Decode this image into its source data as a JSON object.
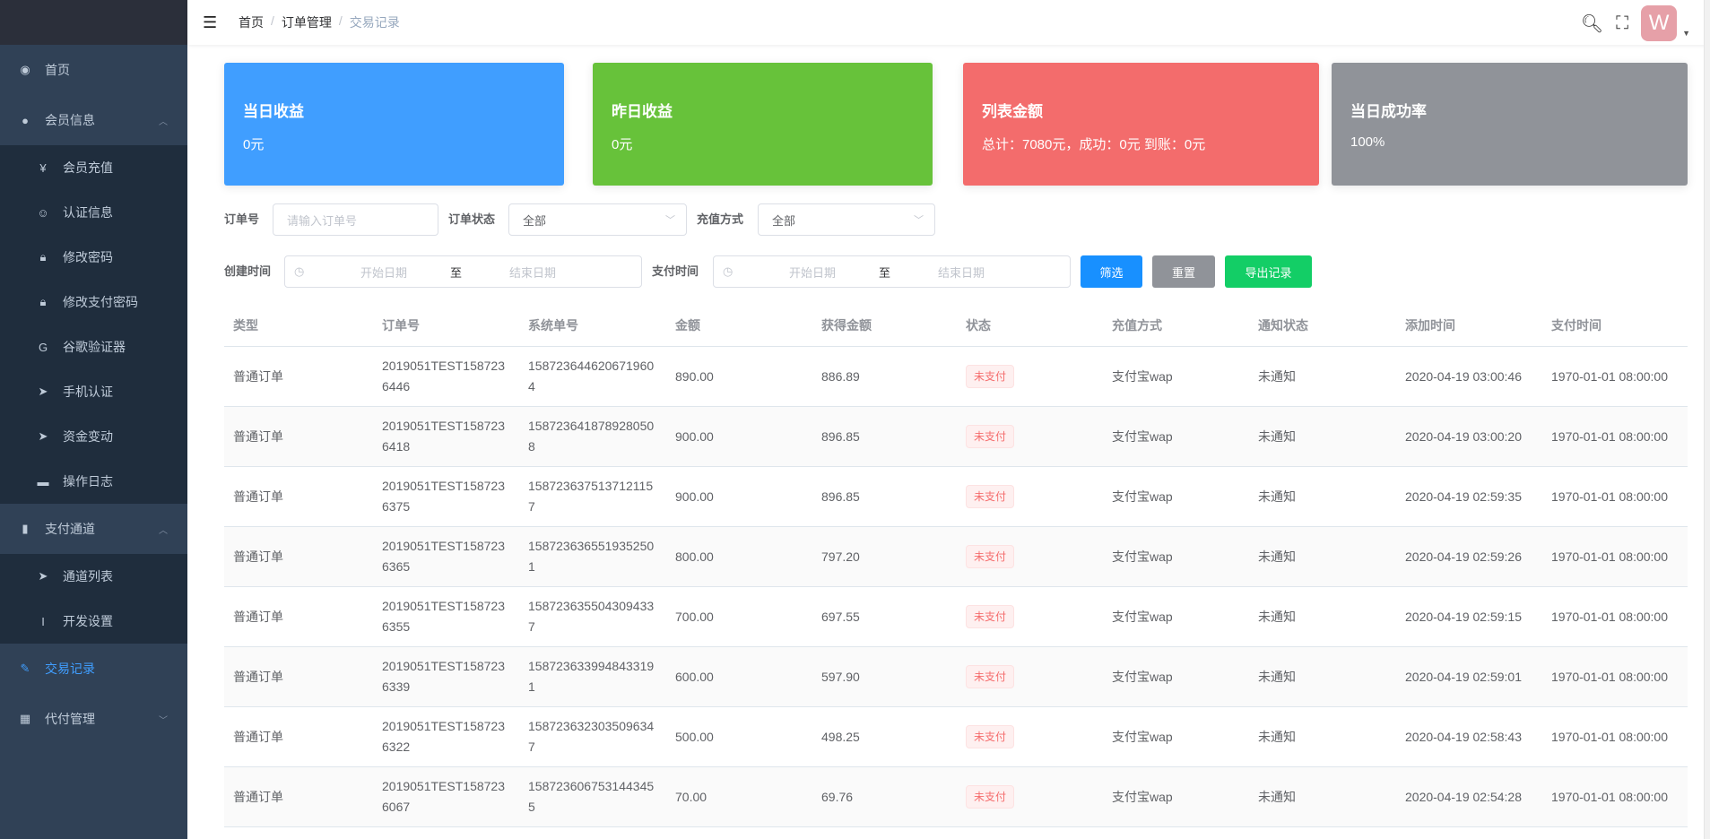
{
  "sidebar": {
    "items": [
      {
        "label": "首页",
        "icon": "dashboard-icon",
        "glyph": "◉",
        "type": "top"
      },
      {
        "label": "会员信息",
        "icon": "user-icon",
        "glyph": "●",
        "type": "top",
        "arrow": "︿"
      },
      {
        "label": "会员充值",
        "icon": "yen-icon",
        "glyph": "¥",
        "type": "sub"
      },
      {
        "label": "认证信息",
        "icon": "id-card-icon",
        "glyph": "☺",
        "type": "sub"
      },
      {
        "label": "修改密码",
        "icon": "lock-icon",
        "glyph": "🔒︎",
        "type": "sub"
      },
      {
        "label": "修改支付密码",
        "icon": "lock-icon",
        "glyph": "🔒︎",
        "type": "sub"
      },
      {
        "label": "谷歌验证器",
        "icon": "google-icon",
        "glyph": "G",
        "type": "sub"
      },
      {
        "label": "手机认证",
        "icon": "paper-plane-icon",
        "glyph": "➤",
        "type": "sub"
      },
      {
        "label": "资金变动",
        "icon": "paper-plane-icon",
        "glyph": "➤",
        "type": "sub"
      },
      {
        "label": "操作日志",
        "icon": "message-icon",
        "glyph": "▬",
        "type": "sub"
      },
      {
        "label": "支付通道",
        "icon": "channel-icon",
        "glyph": "▮",
        "type": "top",
        "arrow": "︿"
      },
      {
        "label": "通道列表",
        "icon": "paper-plane-icon",
        "glyph": "➤",
        "type": "sub"
      },
      {
        "label": "开发设置",
        "icon": "code-icon",
        "glyph": "I",
        "type": "sub"
      },
      {
        "label": "交易记录",
        "icon": "edit-icon",
        "glyph": "✎",
        "type": "top",
        "active": true
      },
      {
        "label": "代付管理",
        "icon": "grid-icon",
        "glyph": "▦",
        "type": "top",
        "arrow": "﹀"
      }
    ]
  },
  "header": {
    "breadcrumb": [
      "首页",
      "订单管理",
      "交易记录"
    ],
    "separator": "/",
    "avatar_letter": "W"
  },
  "cards": [
    {
      "title": "当日收益",
      "value": "0元",
      "color": "#409eff"
    },
    {
      "title": "昨日收益",
      "value": "0元",
      "color": "#67c23a"
    },
    {
      "title": "列表金额",
      "value": "总计：7080元，成功：0元 到账：0元",
      "color": "#f36c6c"
    },
    {
      "title": "当日成功率",
      "value": "100%",
      "color": "#909399"
    }
  ],
  "filters": {
    "order_no_label": "订单号",
    "order_no_placeholder": "请输入订单号",
    "order_status_label": "订单状态",
    "order_status_value": "全部",
    "pay_method_label": "充值方式",
    "pay_method_value": "全部",
    "create_time_label": "创建时间",
    "pay_time_label": "支付时间",
    "start_placeholder": "开始日期",
    "end_placeholder": "结束日期",
    "range_sep": "至",
    "filter_btn": "筛选",
    "reset_btn": "重置",
    "export_btn": "导出记录",
    "colors": {
      "filter": "#1890ff",
      "reset": "#909399",
      "export": "#13ce66"
    }
  },
  "table": {
    "columns": [
      "类型",
      "订单号",
      "系统单号",
      "金额",
      "获得金额",
      "状态",
      "充值方式",
      "通知状态",
      "添加时间",
      "支付时间"
    ],
    "rows": [
      [
        "普通订单",
        "2019051TEST1587236446",
        "1587236446206719604",
        "890.00",
        "886.89",
        "未支付",
        "支付宝wap",
        "未通知",
        "2020-04-19 03:00:46",
        "1970-01-01 08:00:00"
      ],
      [
        "普通订单",
        "2019051TEST1587236418",
        "1587236418789280508",
        "900.00",
        "896.85",
        "未支付",
        "支付宝wap",
        "未通知",
        "2020-04-19 03:00:20",
        "1970-01-01 08:00:00"
      ],
      [
        "普通订单",
        "2019051TEST1587236375",
        "1587236375137121157",
        "900.00",
        "896.85",
        "未支付",
        "支付宝wap",
        "未通知",
        "2020-04-19 02:59:35",
        "1970-01-01 08:00:00"
      ],
      [
        "普通订单",
        "2019051TEST1587236365",
        "1587236365519352501",
        "800.00",
        "797.20",
        "未支付",
        "支付宝wap",
        "未通知",
        "2020-04-19 02:59:26",
        "1970-01-01 08:00:00"
      ],
      [
        "普通订单",
        "2019051TEST1587236355",
        "1587236355043094337",
        "700.00",
        "697.55",
        "未支付",
        "支付宝wap",
        "未通知",
        "2020-04-19 02:59:15",
        "1970-01-01 08:00:00"
      ],
      [
        "普通订单",
        "2019051TEST1587236339",
        "1587236339948433191",
        "600.00",
        "597.90",
        "未支付",
        "支付宝wap",
        "未通知",
        "2020-04-19 02:59:01",
        "1970-01-01 08:00:00"
      ],
      [
        "普通订单",
        "2019051TEST1587236322",
        "1587236323035096347",
        "500.00",
        "498.25",
        "未支付",
        "支付宝wap",
        "未通知",
        "2020-04-19 02:58:43",
        "1970-01-01 08:00:00"
      ],
      [
        "普通订单",
        "2019051TEST1587236067",
        "1587236067531443455",
        "70.00",
        "69.76",
        "未支付",
        "支付宝wap",
        "未通知",
        "2020-04-19 02:54:28",
        "1970-01-01 08:00:00"
      ]
    ]
  }
}
